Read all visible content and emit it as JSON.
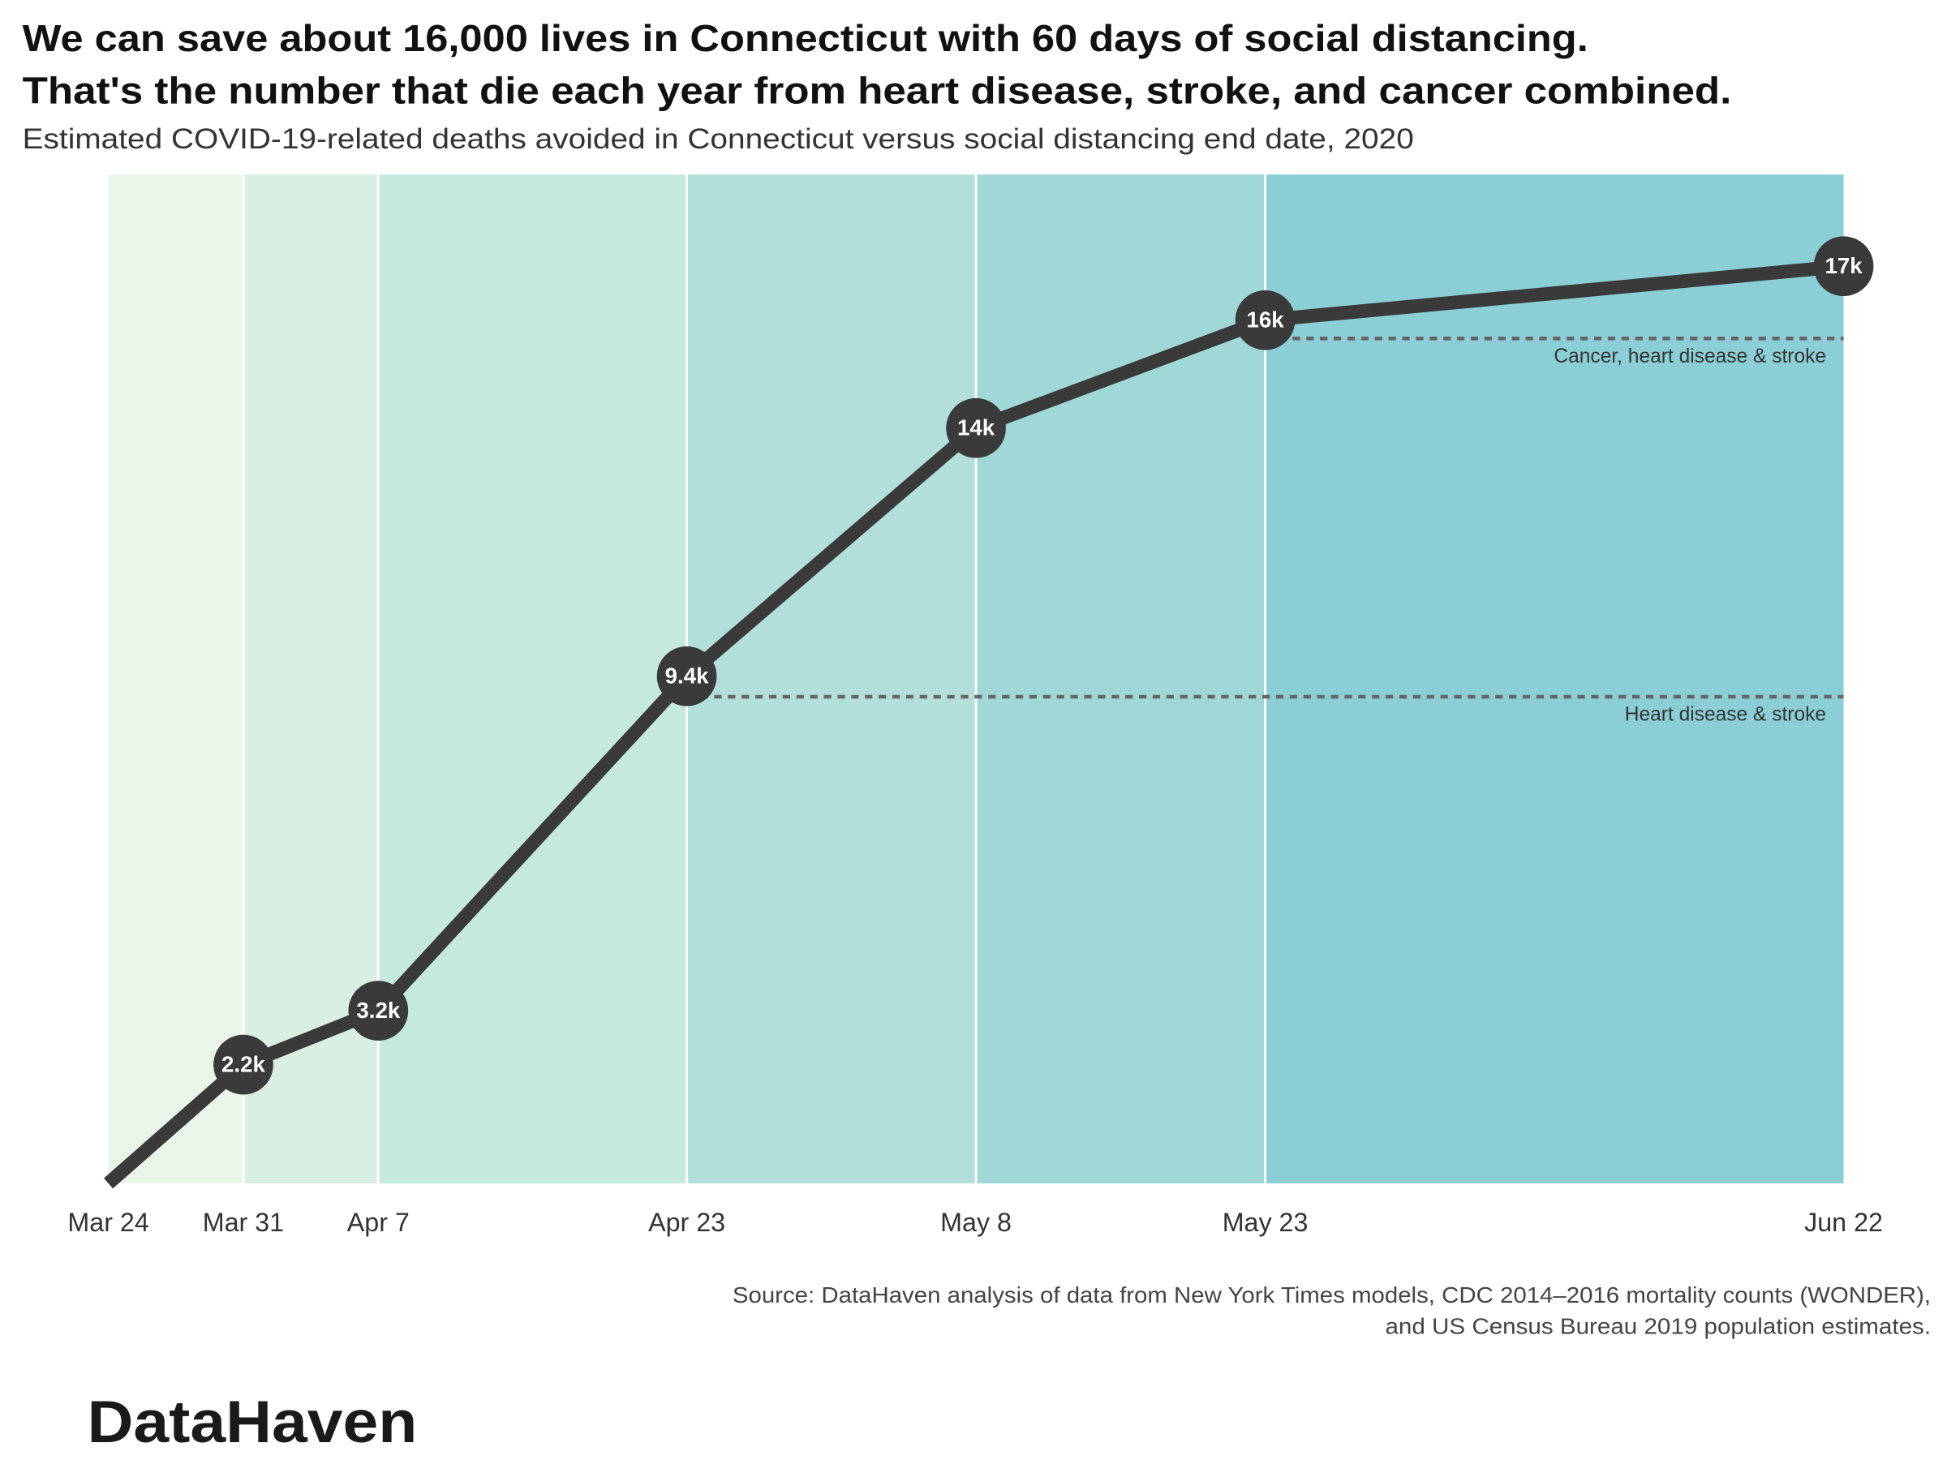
{
  "chart_data": {
    "type": "line",
    "title": [
      "We can save about 16,000 lives in Connecticut with 60 days of social distancing.",
      "That's the number that die each year from heart disease, stroke, and cancer combined."
    ],
    "subtitle": "Estimated COVID-19-related deaths avoided in Connecticut versus social distancing end date, 2020",
    "x": [
      "Mar 24",
      "Mar 31",
      "Apr 7",
      "Apr 23",
      "May 8",
      "May 23",
      "Jun 22"
    ],
    "values": [
      0,
      2200,
      3200,
      9400,
      14000,
      16000,
      17000
    ],
    "value_labels": [
      null,
      "2.2k",
      "3.2k",
      "9.4k",
      "14k",
      "16k",
      "17k"
    ],
    "color": "#3a3a3a",
    "band_colors": [
      "#eaf5ea",
      "#d9efe2",
      "#c5e8df",
      "#b2dfda",
      "#a0d7d7",
      "#8bced5"
    ],
    "ylim": [
      0,
      18700
    ],
    "reference_lines": [
      {
        "label": "Cancer, heart disease & stroke",
        "value": 15660,
        "from": "May 23"
      },
      {
        "label": "Heart disease & stroke",
        "value": 9020,
        "from": "Apr 23"
      }
    ],
    "source": [
      "Source: DataHaven analysis of data from New York Times models, CDC 2014–2016 mortality counts (WONDER),",
      "and US Census Bureau 2019 population estimates."
    ],
    "logo": "DataHaven"
  }
}
